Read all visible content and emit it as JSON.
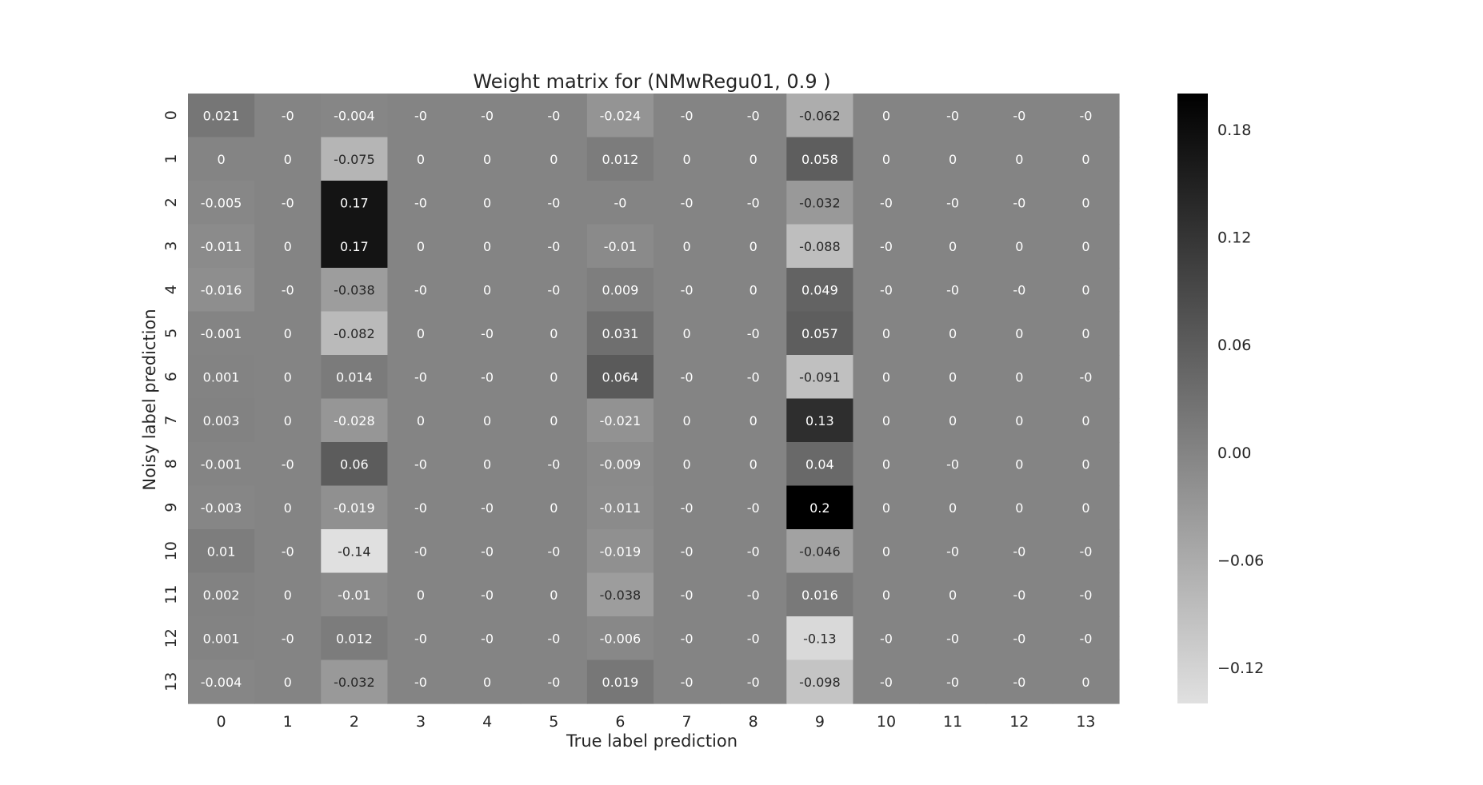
{
  "chart_data": {
    "type": "heatmap",
    "title": "Weight matrix for (NMwRegu01, 0.9 )",
    "xlabel": "True label prediction",
    "ylabel": "Noisy label prediction",
    "x_categories": [
      "0",
      "1",
      "2",
      "3",
      "4",
      "5",
      "6",
      "7",
      "8",
      "9",
      "10",
      "11",
      "12",
      "13"
    ],
    "y_categories": [
      "0",
      "1",
      "2",
      "3",
      "4",
      "5",
      "6",
      "7",
      "8",
      "9",
      "10",
      "11",
      "12",
      "13"
    ],
    "values": [
      [
        0.021,
        0,
        -0.004,
        0,
        0,
        0,
        -0.024,
        0,
        0,
        -0.062,
        0,
        0,
        0,
        0
      ],
      [
        0,
        0,
        -0.075,
        0,
        0,
        0,
        0.012,
        0,
        0,
        0.058,
        0,
        0,
        0,
        0
      ],
      [
        -0.005,
        0,
        0.17,
        0,
        0,
        0,
        0,
        0,
        0,
        -0.032,
        0,
        0,
        0,
        0
      ],
      [
        -0.011,
        0,
        0.17,
        0,
        0,
        0,
        -0.01,
        0,
        0,
        -0.088,
        0,
        0,
        0,
        0
      ],
      [
        -0.016,
        0,
        -0.038,
        0,
        0,
        0,
        0.009,
        0,
        0,
        0.049,
        0,
        0,
        0,
        0
      ],
      [
        -0.001,
        0,
        -0.082,
        0,
        0,
        0,
        0.031,
        0,
        0,
        0.057,
        0,
        0,
        0,
        0
      ],
      [
        0.001,
        0,
        0.014,
        0,
        0,
        0,
        0.064,
        0,
        0,
        -0.091,
        0,
        0,
        0,
        0
      ],
      [
        0.003,
        0,
        -0.028,
        0,
        0,
        0,
        -0.021,
        0,
        0,
        0.13,
        0,
        0,
        0,
        0
      ],
      [
        -0.001,
        0,
        0.06,
        0,
        0,
        0,
        -0.009,
        0,
        0,
        0.04,
        0,
        0,
        0,
        0
      ],
      [
        -0.003,
        0,
        -0.019,
        0,
        0,
        0,
        -0.011,
        0,
        0,
        0.2,
        0,
        0,
        0,
        0
      ],
      [
        0.01,
        0,
        -0.14,
        0,
        0,
        0,
        -0.019,
        0,
        0,
        -0.046,
        0,
        0,
        0,
        0
      ],
      [
        0.002,
        0,
        -0.01,
        0,
        0,
        0,
        -0.038,
        0,
        0,
        0.016,
        0,
        0,
        0,
        0
      ],
      [
        0.001,
        0,
        0.012,
        0,
        0,
        0,
        -0.006,
        0,
        0,
        -0.13,
        0,
        0,
        0,
        0
      ],
      [
        -0.004,
        0,
        -0.032,
        0,
        0,
        0,
        0.019,
        0,
        0,
        -0.098,
        0,
        0,
        0,
        0
      ]
    ],
    "value_labels": [
      [
        "0.021",
        "-0",
        "-0.004",
        "-0",
        "-0",
        "-0",
        "-0.024",
        "-0",
        "-0",
        "-0.062",
        "0",
        "-0",
        "-0",
        "-0"
      ],
      [
        "0",
        "0",
        "-0.075",
        "0",
        "0",
        "0",
        "0.012",
        "0",
        "0",
        "0.058",
        "0",
        "0",
        "0",
        "0"
      ],
      [
        "-0.005",
        "-0",
        "0.17",
        "-0",
        "0",
        "-0",
        "-0",
        "-0",
        "-0",
        "-0.032",
        "-0",
        "-0",
        "-0",
        "0"
      ],
      [
        "-0.011",
        "0",
        "0.17",
        "0",
        "0",
        "-0",
        "-0.01",
        "0",
        "0",
        "-0.088",
        "-0",
        "0",
        "0",
        "0"
      ],
      [
        "-0.016",
        "-0",
        "-0.038",
        "-0",
        "0",
        "-0",
        "0.009",
        "-0",
        "0",
        "0.049",
        "-0",
        "-0",
        "-0",
        "0"
      ],
      [
        "-0.001",
        "0",
        "-0.082",
        "0",
        "-0",
        "0",
        "0.031",
        "0",
        "-0",
        "0.057",
        "0",
        "0",
        "0",
        "0"
      ],
      [
        "0.001",
        "0",
        "0.014",
        "-0",
        "-0",
        "0",
        "0.064",
        "-0",
        "-0",
        "-0.091",
        "0",
        "0",
        "0",
        "-0"
      ],
      [
        "0.003",
        "0",
        "-0.028",
        "0",
        "0",
        "0",
        "-0.021",
        "0",
        "0",
        "0.13",
        "0",
        "0",
        "0",
        "0"
      ],
      [
        "-0.001",
        "-0",
        "0.06",
        "-0",
        "0",
        "-0",
        "-0.009",
        "0",
        "0",
        "0.04",
        "0",
        "-0",
        "0",
        "0"
      ],
      [
        "-0.003",
        "0",
        "-0.019",
        "-0",
        "-0",
        "0",
        "-0.011",
        "-0",
        "-0",
        "0.2",
        "0",
        "0",
        "0",
        "0"
      ],
      [
        "0.01",
        "-0",
        "-0.14",
        "-0",
        "-0",
        "-0",
        "-0.019",
        "-0",
        "-0",
        "-0.046",
        "0",
        "-0",
        "-0",
        "-0"
      ],
      [
        "0.002",
        "0",
        "-0.01",
        "0",
        "-0",
        "0",
        "-0.038",
        "-0",
        "-0",
        "0.016",
        "0",
        "0",
        "-0",
        "-0"
      ],
      [
        "0.001",
        "-0",
        "0.012",
        "-0",
        "-0",
        "-0",
        "-0.006",
        "-0",
        "-0",
        "-0.13",
        "-0",
        "-0",
        "-0",
        "-0"
      ],
      [
        "-0.004",
        "0",
        "-0.032",
        "-0",
        "0",
        "-0",
        "0.019",
        "-0",
        "-0",
        "-0.098",
        "-0",
        "-0",
        "-0",
        "0"
      ]
    ],
    "colormap": "gray_r",
    "colorbar": {
      "range": [
        -0.14,
        0.2
      ],
      "ticks": [
        -0.12,
        -0.06,
        0.0,
        0.06,
        0.12,
        0.18
      ],
      "tick_labels": [
        "−0.12",
        "−0.06",
        "0.00",
        "0.06",
        "0.12",
        "0.18"
      ]
    },
    "grid": false
  }
}
